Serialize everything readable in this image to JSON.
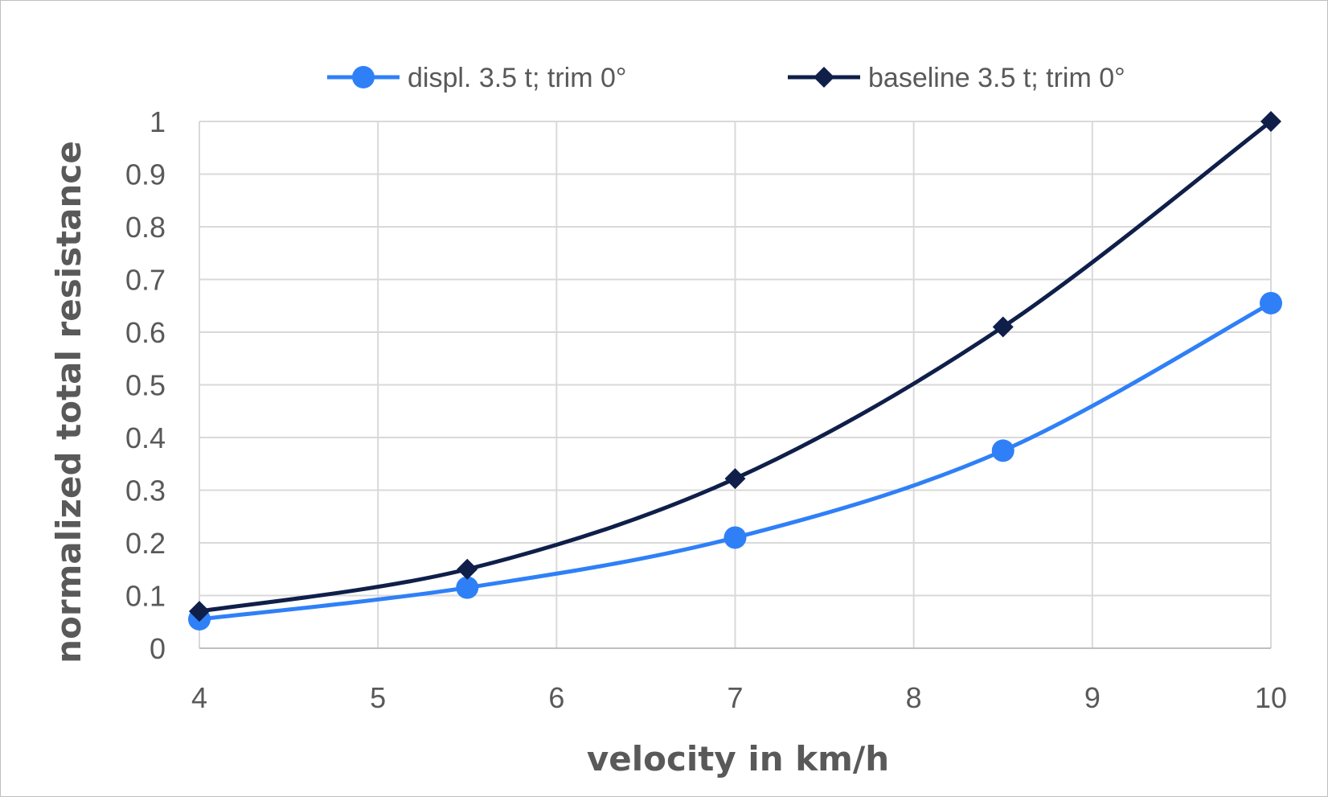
{
  "chart_data": {
    "type": "line",
    "xlabel": "velocity in km/h",
    "ylabel": "normalized total resistance",
    "xlim": [
      4,
      10
    ],
    "ylim": [
      0,
      1
    ],
    "x_ticks": [
      "4",
      "5",
      "6",
      "7",
      "8",
      "9",
      "10"
    ],
    "y_ticks": [
      "0",
      "0.1",
      "0.2",
      "0.3",
      "0.4",
      "0.5",
      "0.6",
      "0.7",
      "0.8",
      "0.9",
      "1"
    ],
    "grid": true,
    "legend_position": "top",
    "smooth": true,
    "series": [
      {
        "name": "displ. 3.5 t; trim 0°",
        "marker": "circle",
        "color": "#2f80f7",
        "x": [
          4,
          5.5,
          7,
          8.5,
          10
        ],
        "y": [
          0.055,
          0.115,
          0.21,
          0.375,
          0.655
        ]
      },
      {
        "name": "baseline 3.5 t; trim 0°",
        "marker": "diamond",
        "color": "#0f1f4a",
        "x": [
          4,
          5.5,
          7,
          8.5,
          10
        ],
        "y": [
          0.07,
          0.15,
          0.322,
          0.61,
          1.0
        ]
      }
    ]
  }
}
